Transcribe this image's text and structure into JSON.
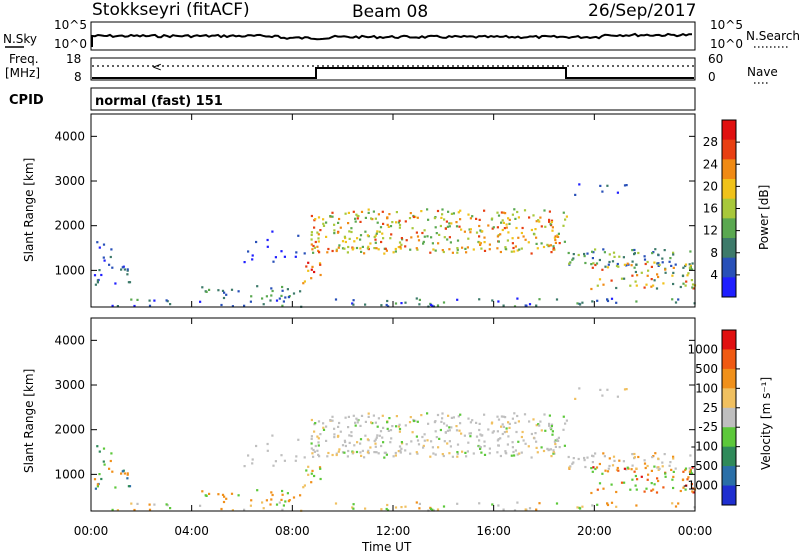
{
  "header": {
    "station": "Stokkseyri (fitACF)",
    "beam": "Beam 08",
    "date": "26/Sep/2017"
  },
  "top_panels": {
    "nsky_label": "N.Sky",
    "nsearch_label": "N.Search",
    "freq_label_line1": "Freq.",
    "freq_label_line2": "[MHz]",
    "nave_label": "Nave",
    "cpid_label": "CPID",
    "noise_ticks_left": [
      "10^5",
      "10^0"
    ],
    "noise_ticks_right": [
      "10^5",
      "10^0"
    ],
    "freq_ticks": [
      "18",
      "8"
    ],
    "nave_ticks": [
      "60",
      "0"
    ],
    "cpid_text": "normal (fast) 151"
  },
  "chart_data": [
    {
      "type": "heatmap",
      "name": "power",
      "ylabel": "Slant Range [km]",
      "yticks": [
        "4000",
        "3000",
        "2000",
        "1000"
      ],
      "ylim": [
        180,
        4500
      ],
      "colorbar_label": "Power [dB]",
      "colorbar_ticks": [
        "28",
        "24",
        "20",
        "16",
        "12",
        "8",
        "4"
      ],
      "colorbar_colors": [
        "#1f1fff",
        "#2850b8",
        "#3d7a6a",
        "#5aa850",
        "#a8c83a",
        "#f0c21a",
        "#f08a14",
        "#e83f12",
        "#e01010"
      ]
    },
    {
      "type": "heatmap",
      "name": "velocity",
      "ylabel": "Slant Range [km]",
      "yticks": [
        "4000",
        "3000",
        "2000",
        "1000"
      ],
      "ylim": [
        180,
        4500
      ],
      "xlabel": "Time UT",
      "xticks": [
        "00:00",
        "04:00",
        "08:00",
        "12:00",
        "16:00",
        "20:00",
        "00:00"
      ],
      "colorbar_label": "Velocity [m s-1]",
      "colorbar_ticks": [
        "1000",
        "500",
        "100",
        "25",
        "-25",
        "-100",
        "-500",
        "-1000"
      ],
      "colorbar_colors": [
        "#1f2fd0",
        "#2a6fa8",
        "#2f8a5a",
        "#5cc83a",
        "#bfbfbf",
        "#f0c060",
        "#f0901a",
        "#f05a12",
        "#e01010"
      ]
    }
  ]
}
